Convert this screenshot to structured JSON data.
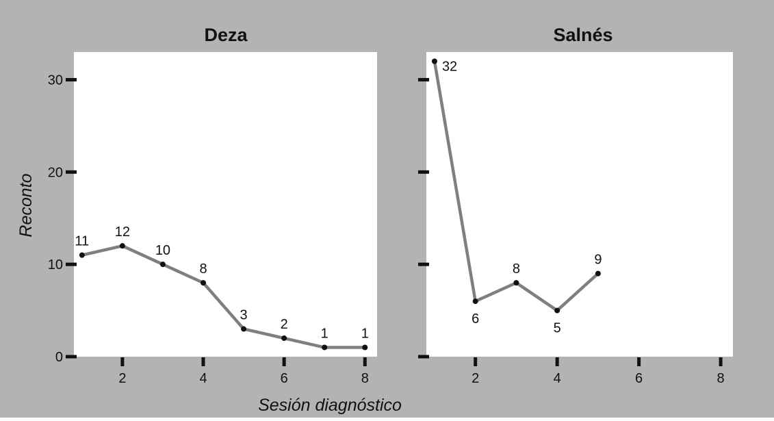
{
  "chart_data": {
    "type": "line",
    "xlabel": "Sesión diagnóstico",
    "ylabel": "Reconto",
    "xlim": [
      0.8,
      8.3
    ],
    "ylim": [
      0,
      33
    ],
    "x_ticks": [
      2,
      4,
      6,
      8
    ],
    "y_ticks": [
      0,
      10,
      20,
      30
    ],
    "grid": false,
    "colors": {
      "background": "#b3b3b3",
      "panel": "#ffffff",
      "line": "#7f7f7f",
      "point": "#111111",
      "ticks": "#111111"
    },
    "panels": [
      {
        "title": "Deza",
        "x": [
          1,
          2,
          3,
          4,
          5,
          6,
          7,
          8
        ],
        "y": [
          11,
          12,
          10,
          8,
          3,
          2,
          1,
          1
        ],
        "labels": [
          "11",
          "12",
          "10",
          "8",
          "3",
          "2",
          "1",
          "1"
        ]
      },
      {
        "title": "Salnés",
        "x": [
          1,
          2,
          3,
          4,
          5
        ],
        "y": [
          32,
          6,
          8,
          5,
          9
        ],
        "labels": [
          "32",
          "6",
          "8",
          "5",
          "9"
        ]
      }
    ]
  }
}
